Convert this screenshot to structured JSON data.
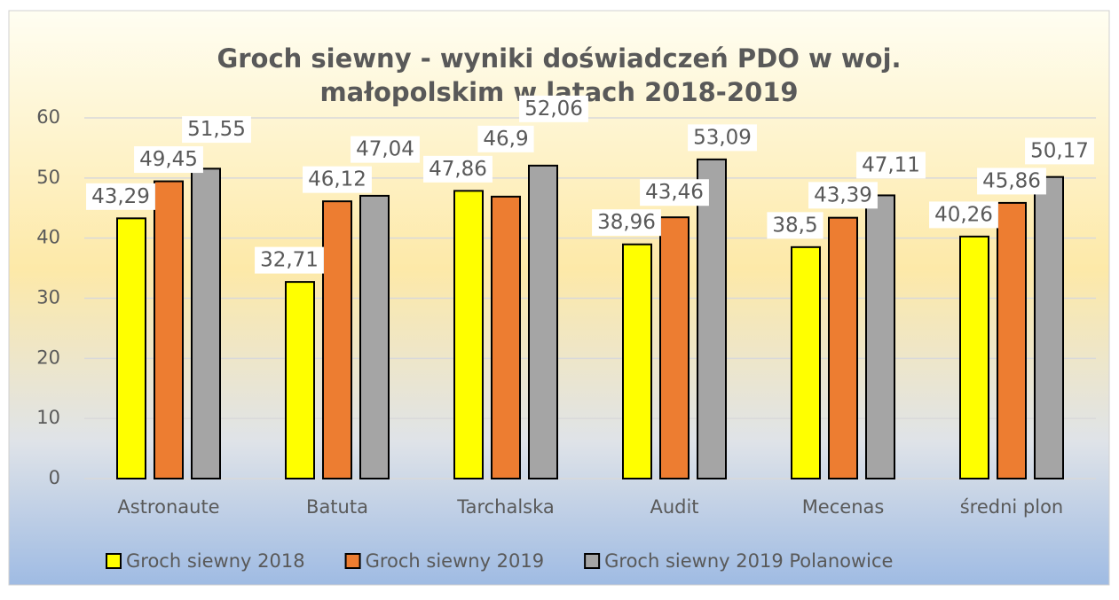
{
  "chart_data": {
    "type": "bar",
    "title": "Groch siewny - wyniki doświadczeń PDO w woj. małopolskim w latach 2018-2019",
    "categories": [
      "Astronaute",
      "Batuta",
      "Tarchalska",
      "Audit",
      "Mecenas",
      "średni plon"
    ],
    "series": [
      {
        "name": "Groch siewny 2018",
        "color": "#ffff00",
        "values": [
          43.29,
          32.71,
          47.86,
          38.96,
          38.5,
          40.26
        ],
        "value_labels": [
          "43,29",
          "32,71",
          "47,86",
          "38,96",
          "38,5",
          "40,26"
        ]
      },
      {
        "name": "Groch siewny 2019",
        "color": "#ed7d31",
        "values": [
          49.45,
          46.12,
          46.9,
          43.46,
          43.39,
          45.86
        ],
        "value_labels": [
          "49,45",
          "46,12",
          "46,9",
          "43,46",
          "43,39",
          "45,86"
        ]
      },
      {
        "name": "Groch siewny 2019 Polanowice",
        "color": "#a5a5a5",
        "values": [
          51.55,
          47.04,
          52.06,
          53.09,
          47.11,
          50.17
        ],
        "value_labels": [
          "51,55",
          "47,04",
          "52,06",
          "53,09",
          "47,11",
          "50,17"
        ]
      }
    ],
    "ylim": [
      0,
      60
    ],
    "yticks": [
      0,
      10,
      20,
      30,
      40,
      50,
      60
    ],
    "grid": true,
    "legend": "bottom"
  }
}
